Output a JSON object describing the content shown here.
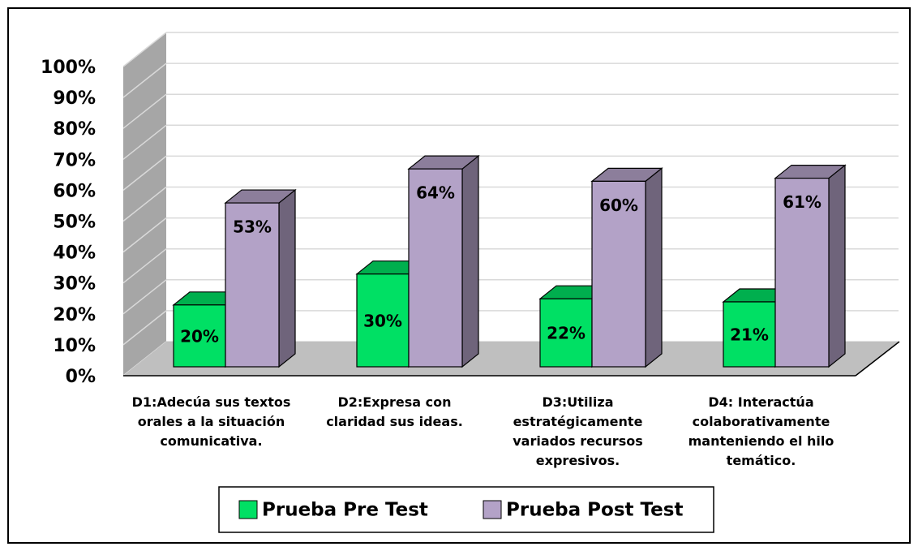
{
  "chart_data": {
    "type": "bar3d",
    "categories": [
      "D1:Adecúa sus textos orales a la situación comunicativa.",
      "D2:Expresa con claridad sus ideas.",
      "D3:Utiliza estratégicamente variados recursos expresivos.",
      "D4: Interactúa colaborativamente manteniendo el hilo temático."
    ],
    "series": [
      {
        "name": "Prueba Pre Test",
        "color": "#00e064",
        "values": [
          20,
          30,
          22,
          21
        ],
        "value_labels": [
          "20%",
          "30%",
          "22%",
          "21%"
        ]
      },
      {
        "name": "Prueba Post Test",
        "color": "#b3a2c7",
        "values": [
          53,
          64,
          60,
          61
        ],
        "value_labels": [
          "53%",
          "64%",
          "60%",
          "61%"
        ]
      }
    ],
    "ylim": [
      0,
      100
    ],
    "yticks": [
      {
        "value": 0,
        "label": "0%"
      },
      {
        "value": 10,
        "label": "10%"
      },
      {
        "value": 20,
        "label": "20%"
      },
      {
        "value": 30,
        "label": "30%"
      },
      {
        "value": 40,
        "label": "40%"
      },
      {
        "value": 50,
        "label": "50%"
      },
      {
        "value": 60,
        "label": "60%"
      },
      {
        "value": 70,
        "label": "70%"
      },
      {
        "value": 80,
        "label": "80%"
      },
      {
        "value": 90,
        "label": "90%"
      },
      {
        "value": 100,
        "label": "100%"
      }
    ],
    "grid": true,
    "legend": "bottom"
  }
}
